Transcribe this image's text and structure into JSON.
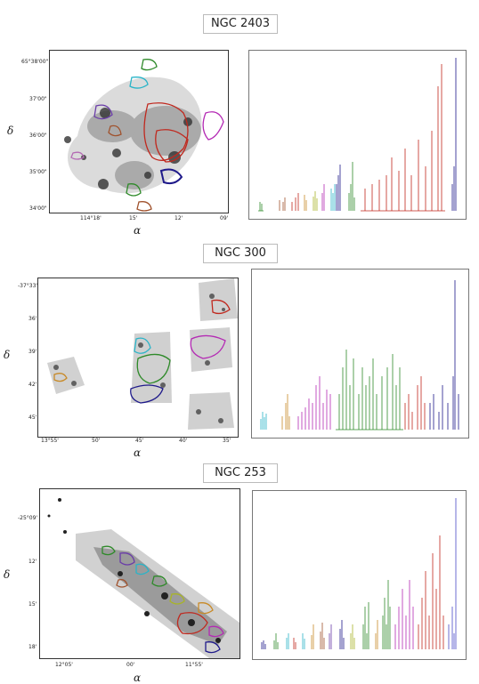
{
  "panels": [
    {
      "title": "NGC 2403",
      "xlabel": "α",
      "ylabel": "δ",
      "x_ticks": [
        "114°18'",
        "15'",
        "12'",
        "09'"
      ],
      "y_ticks": [
        "65°38'00\"",
        "37'00\"",
        "36'00\"",
        "35'00\"",
        "34'00\""
      ]
    },
    {
      "title": "NGC 300",
      "xlabel": "α",
      "ylabel": "δ",
      "x_ticks": [
        "13°55'",
        "50'",
        "45'",
        "40'",
        "35'"
      ],
      "y_ticks": [
        "-37°33'",
        "36'",
        "39'",
        "42'",
        "45'"
      ]
    },
    {
      "title": "NGC 253",
      "xlabel": "α",
      "ylabel": "δ",
      "x_ticks": [
        "12°05'",
        "00'",
        "11°55'"
      ],
      "y_ticks": [
        "-25°09'",
        "12'",
        "15'",
        "18'"
      ]
    }
  ],
  "colors": {
    "red": "#c0281e",
    "blue": "#1f1a8a",
    "green": "#2f8a2a",
    "magenta": "#b42ab4",
    "cyan": "#2ab4c8",
    "orange": "#c88a28",
    "brown": "#a0522d",
    "pink": "#d478a8",
    "olive": "#a8b428",
    "purple": "#6a3ca8",
    "gray": "#888888"
  }
}
